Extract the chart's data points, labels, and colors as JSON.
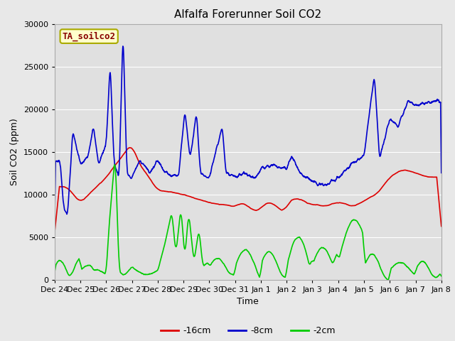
{
  "title": "Alfalfa Forerunner Soil CO2",
  "xlabel": "Time",
  "ylabel": "Soil CO2 (ppm)",
  "ylim": [
    0,
    30000
  ],
  "yticks": [
    0,
    5000,
    10000,
    15000,
    20000,
    25000,
    30000
  ],
  "annotation_text": "TA_soilco2",
  "annotation_box_color": "#ffffcc",
  "annotation_text_color": "#880000",
  "annotation_border_color": "#aaaa00",
  "fig_bg_color": "#e8e8e8",
  "plot_bg_color": "#e0e0e0",
  "line_colors": {
    "red": "#dd0000",
    "blue": "#0000cc",
    "green": "#00cc00"
  },
  "xtick_labels": [
    "Dec 24",
    "Dec 25",
    "Dec 26",
    "Dec 27",
    "Dec 28",
    "Dec 29",
    "Dec 30",
    "Dec 31",
    "Jan 1",
    "Jan 2",
    "Jan 3",
    "Jan 4",
    "Jan 5",
    "Jan 6",
    "Jan 7",
    "Jan 8"
  ],
  "legend_labels": [
    "-16cm",
    "-8cm",
    "-2cm"
  ]
}
